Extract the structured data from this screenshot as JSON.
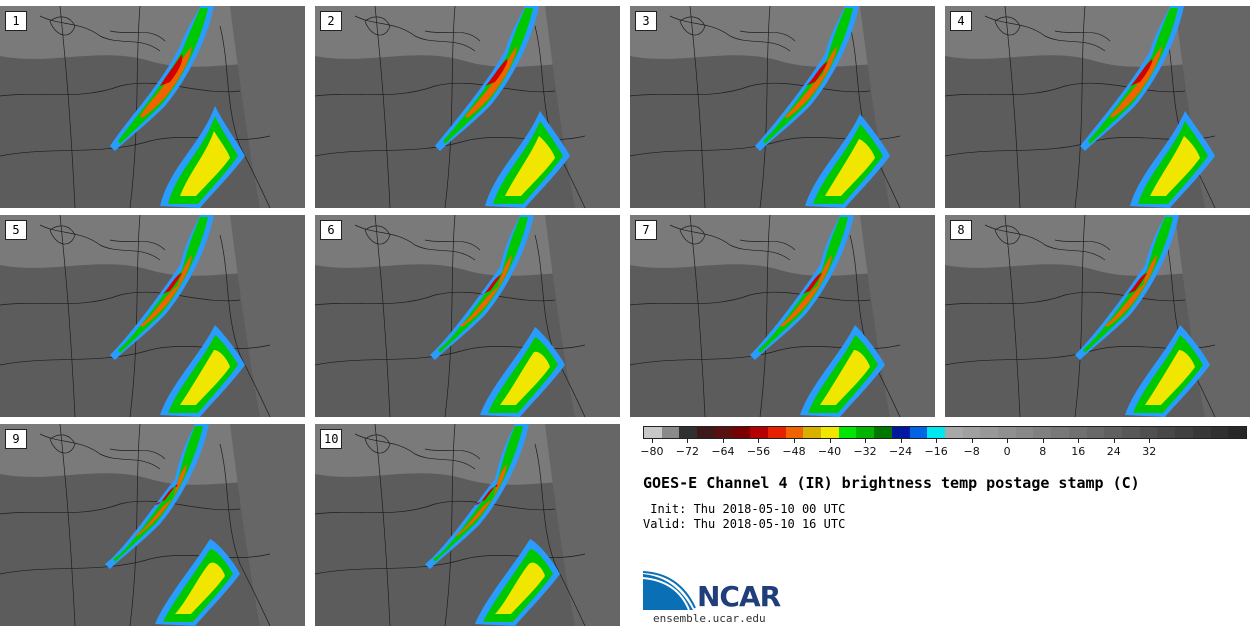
{
  "panels": [
    {
      "label": "1"
    },
    {
      "label": "2"
    },
    {
      "label": "3"
    },
    {
      "label": "4"
    },
    {
      "label": "5"
    },
    {
      "label": "6"
    },
    {
      "label": "7"
    },
    {
      "label": "8"
    },
    {
      "label": "9"
    },
    {
      "label": "10"
    }
  ],
  "colorbar": {
    "colors": [
      "#c8c8c8",
      "#8a8a8a",
      "#303030",
      "#3f1818",
      "#5a1010",
      "#780000",
      "#b40000",
      "#e62000",
      "#f06400",
      "#d8b000",
      "#f0e600",
      "#00e600",
      "#00b400",
      "#007800",
      "#0018a0",
      "#0064e6",
      "#00e6f0",
      "#a8a8a8",
      "#a0a0a0",
      "#989898",
      "#909090",
      "#888888",
      "#808080",
      "#787878",
      "#707070",
      "#686868",
      "#606060",
      "#585858",
      "#505050",
      "#484848",
      "#404040",
      "#383838",
      "#303030",
      "#282828"
    ],
    "tick_labels": [
      "−80",
      "−72",
      "−64",
      "−56",
      "−48",
      "−40",
      "−32",
      "−24",
      "−16",
      "−8",
      "0",
      "8",
      "16",
      "24",
      "32"
    ]
  },
  "title": "GOES-E Channel 4 (IR) brightness temp postage stamp (C)",
  "init_text": " Init: Thu 2018-05-10 00 UTC",
  "valid_text": "Valid: Thu 2018-05-10 16 UTC",
  "logo_text": "NCAR",
  "site": "ensemble.ucar.edu",
  "icons": {
    "logo": "ncar-logo-icon"
  }
}
